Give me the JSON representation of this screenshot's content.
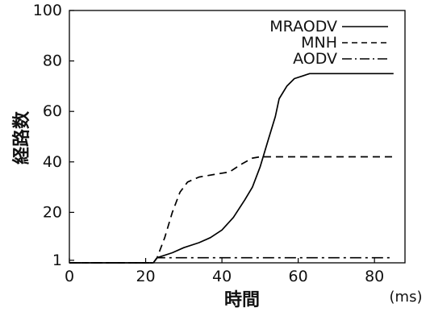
{
  "chart_data": {
    "type": "line",
    "title": "",
    "xlabel": "時間",
    "ylabel": "経路数",
    "x_unit": "(ms)",
    "xlim": [
      0,
      88
    ],
    "ylim": [
      0,
      100
    ],
    "x_ticks": [
      0,
      20,
      40,
      60,
      80
    ],
    "y_ticks": [
      1,
      20,
      40,
      60,
      80,
      100
    ],
    "grid": false,
    "legend_position": "top-right",
    "series": [
      {
        "name": "MRAODV",
        "style": "solid",
        "color": "#000000",
        "points": [
          [
            0,
            0
          ],
          [
            22,
            0
          ],
          [
            23,
            2
          ],
          [
            27,
            4
          ],
          [
            30,
            6
          ],
          [
            34,
            8
          ],
          [
            37,
            10
          ],
          [
            40,
            13
          ],
          [
            43,
            18
          ],
          [
            46,
            25
          ],
          [
            48,
            30
          ],
          [
            50,
            38
          ],
          [
            52,
            48
          ],
          [
            54,
            58
          ],
          [
            55,
            65
          ],
          [
            57,
            70
          ],
          [
            59,
            73
          ],
          [
            61,
            74
          ],
          [
            63,
            75
          ],
          [
            70,
            75
          ],
          [
            80,
            75
          ],
          [
            85,
            75
          ]
        ]
      },
      {
        "name": "MNH",
        "style": "dashed",
        "color": "#000000",
        "points": [
          [
            0,
            0
          ],
          [
            22,
            0
          ],
          [
            23,
            2
          ],
          [
            25,
            10
          ],
          [
            27,
            20
          ],
          [
            29,
            28
          ],
          [
            31,
            32
          ],
          [
            34,
            34
          ],
          [
            38,
            35
          ],
          [
            42,
            36
          ],
          [
            45,
            39
          ],
          [
            48,
            41.5
          ],
          [
            50,
            42
          ],
          [
            60,
            42
          ],
          [
            70,
            42
          ],
          [
            80,
            42
          ],
          [
            85,
            42
          ]
        ]
      },
      {
        "name": "AODV",
        "style": "dashdot",
        "color": "#000000",
        "points": [
          [
            0,
            0
          ],
          [
            22,
            0
          ],
          [
            23,
            2
          ],
          [
            85,
            2
          ]
        ]
      }
    ]
  }
}
